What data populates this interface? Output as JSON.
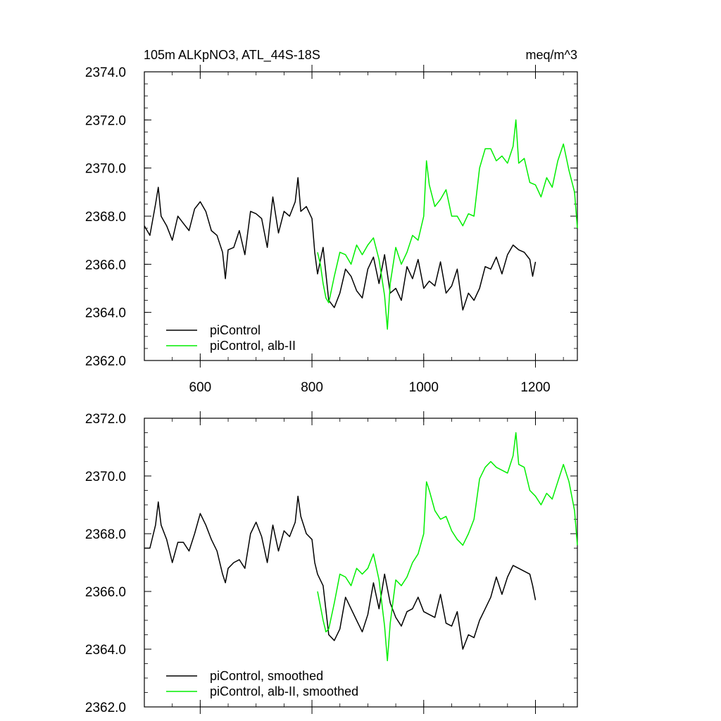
{
  "header": {
    "title": "105m ALKpNO3, ATL_44S-18S",
    "units": "meq/m^3"
  },
  "colors": {
    "black_series": "#000000",
    "green_series": "#00ee00",
    "axis": "#000000"
  },
  "chart_data": [
    {
      "type": "line",
      "xlim": [
        500,
        1275
      ],
      "ylim": [
        2362.0,
        2374.0
      ],
      "xticks": [
        600,
        800,
        1000,
        1200
      ],
      "yticks": [
        2362.0,
        2364.0,
        2366.0,
        2368.0,
        2370.0,
        2372.0,
        2374.0
      ],
      "ytick_labels": [
        "2362.0",
        "2364.0",
        "2366.0",
        "2368.0",
        "2370.0",
        "2372.0",
        "2374.0"
      ],
      "xtick_labels": [
        "600",
        "800",
        "1000",
        "1200"
      ],
      "legend_position": "bottom-left",
      "series": [
        {
          "name": "piControl",
          "color": "#000000",
          "x": [
            500,
            510,
            520,
            525,
            530,
            540,
            550,
            560,
            570,
            580,
            590,
            600,
            610,
            620,
            630,
            640,
            645,
            650,
            660,
            670,
            680,
            690,
            700,
            710,
            720,
            730,
            740,
            750,
            760,
            770,
            775,
            780,
            790,
            800,
            805,
            810,
            820,
            830,
            840,
            850,
            860,
            870,
            880,
            890,
            900,
            910,
            920,
            930,
            940,
            950,
            960,
            970,
            980,
            990,
            1000,
            1010,
            1020,
            1030,
            1040,
            1050,
            1060,
            1070,
            1080,
            1090,
            1100,
            1110,
            1120,
            1130,
            1140,
            1150,
            1160,
            1170,
            1180,
            1190,
            1195,
            1200
          ],
          "y": [
            2367.6,
            2367.2,
            2368.5,
            2369.2,
            2368.0,
            2367.6,
            2367.0,
            2368.0,
            2367.7,
            2367.4,
            2368.3,
            2368.6,
            2368.2,
            2367.4,
            2367.2,
            2366.5,
            2365.4,
            2366.6,
            2366.7,
            2367.4,
            2366.4,
            2368.2,
            2368.1,
            2367.9,
            2366.7,
            2368.8,
            2367.3,
            2368.2,
            2368.0,
            2368.6,
            2369.6,
            2368.2,
            2368.4,
            2367.9,
            2366.5,
            2365.6,
            2366.7,
            2364.5,
            2364.2,
            2364.8,
            2365.8,
            2365.5,
            2364.9,
            2364.6,
            2365.8,
            2366.3,
            2365.2,
            2366.4,
            2364.8,
            2365.0,
            2364.5,
            2365.9,
            2365.4,
            2366.2,
            2365.0,
            2365.3,
            2365.1,
            2366.1,
            2364.8,
            2365.1,
            2365.8,
            2364.1,
            2364.8,
            2364.5,
            2365.0,
            2365.9,
            2365.8,
            2366.3,
            2365.6,
            2366.4,
            2366.8,
            2366.6,
            2366.5,
            2366.2,
            2365.5,
            2366.1
          ]
        },
        {
          "name": "piControl, alb-II",
          "color": "#00ee00",
          "x": [
            810,
            815,
            820,
            825,
            830,
            840,
            850,
            860,
            870,
            880,
            890,
            900,
            910,
            920,
            930,
            935,
            940,
            950,
            960,
            970,
            980,
            990,
            1000,
            1005,
            1010,
            1020,
            1030,
            1040,
            1050,
            1060,
            1070,
            1080,
            1090,
            1100,
            1110,
            1120,
            1130,
            1140,
            1150,
            1160,
            1165,
            1170,
            1180,
            1190,
            1200,
            1210,
            1220,
            1230,
            1240,
            1250,
            1260,
            1270,
            1275
          ],
          "y": [
            2366.5,
            2366.0,
            2365.2,
            2364.6,
            2364.4,
            2365.5,
            2366.5,
            2366.4,
            2366.0,
            2366.8,
            2366.4,
            2366.8,
            2367.1,
            2366.2,
            2364.7,
            2363.3,
            2365.2,
            2366.7,
            2366.0,
            2366.5,
            2367.2,
            2367.0,
            2368.0,
            2370.3,
            2369.3,
            2368.4,
            2368.7,
            2369.1,
            2368.0,
            2368.0,
            2367.6,
            2368.1,
            2368.0,
            2370.0,
            2370.8,
            2370.8,
            2370.3,
            2370.5,
            2370.2,
            2370.9,
            2372.0,
            2370.2,
            2370.4,
            2369.4,
            2369.3,
            2368.8,
            2369.6,
            2369.2,
            2370.3,
            2371.0,
            2369.9,
            2369.0,
            2367.5
          ]
        }
      ]
    },
    {
      "type": "line",
      "xlim": [
        500,
        1275
      ],
      "ylim": [
        2362.0,
        2372.0
      ],
      "xticks": [
        600,
        800,
        1000,
        1200
      ],
      "yticks": [
        2362.0,
        2364.0,
        2366.0,
        2368.0,
        2370.0,
        2372.0
      ],
      "ytick_labels": [
        "2362.0",
        "2364.0",
        "2366.0",
        "2368.0",
        "2370.0",
        "2372.0"
      ],
      "xtick_labels": [],
      "legend_position": "bottom-left",
      "series": [
        {
          "name": "piControl, smoothed",
          "color": "#000000",
          "x": [
            500,
            510,
            520,
            525,
            530,
            540,
            550,
            560,
            570,
            580,
            590,
            600,
            610,
            620,
            630,
            640,
            645,
            650,
            660,
            670,
            680,
            690,
            700,
            710,
            720,
            730,
            740,
            750,
            760,
            770,
            775,
            780,
            790,
            800,
            805,
            810,
            820,
            830,
            840,
            850,
            860,
            870,
            880,
            890,
            900,
            910,
            920,
            930,
            940,
            950,
            960,
            970,
            980,
            990,
            1000,
            1010,
            1020,
            1030,
            1040,
            1050,
            1060,
            1070,
            1080,
            1090,
            1100,
            1110,
            1120,
            1130,
            1140,
            1150,
            1160,
            1170,
            1180,
            1190,
            1195,
            1200
          ],
          "y": [
            2367.5,
            2367.5,
            2368.3,
            2369.1,
            2368.3,
            2367.8,
            2367.0,
            2367.7,
            2367.7,
            2367.4,
            2368.0,
            2368.7,
            2368.3,
            2367.8,
            2367.4,
            2366.6,
            2366.3,
            2366.8,
            2367.0,
            2367.1,
            2366.8,
            2368.0,
            2368.4,
            2367.9,
            2367.0,
            2368.3,
            2367.4,
            2368.1,
            2367.9,
            2368.4,
            2369.3,
            2368.6,
            2368.0,
            2367.8,
            2367.0,
            2366.6,
            2366.2,
            2364.5,
            2364.3,
            2364.7,
            2365.8,
            2365.4,
            2365.0,
            2364.6,
            2365.2,
            2366.3,
            2365.4,
            2366.6,
            2365.6,
            2365.1,
            2364.8,
            2365.3,
            2365.4,
            2365.8,
            2365.3,
            2365.2,
            2365.1,
            2365.9,
            2364.9,
            2364.8,
            2365.3,
            2364.0,
            2364.5,
            2364.4,
            2365.0,
            2365.4,
            2365.8,
            2366.5,
            2365.9,
            2366.5,
            2366.9,
            2366.8,
            2366.7,
            2366.6,
            2366.2,
            2365.7
          ]
        },
        {
          "name": "piControl, alb-II, smoothed",
          "color": "#00ee00",
          "x": [
            810,
            815,
            820,
            825,
            830,
            840,
            850,
            860,
            870,
            880,
            890,
            900,
            910,
            920,
            930,
            935,
            940,
            950,
            960,
            970,
            980,
            990,
            1000,
            1005,
            1010,
            1020,
            1030,
            1040,
            1050,
            1060,
            1070,
            1080,
            1090,
            1100,
            1110,
            1120,
            1130,
            1140,
            1150,
            1160,
            1165,
            1170,
            1180,
            1190,
            1200,
            1210,
            1220,
            1230,
            1240,
            1250,
            1260,
            1270,
            1275
          ],
          "y": [
            2366.0,
            2365.5,
            2365.0,
            2364.6,
            2364.7,
            2365.6,
            2366.6,
            2366.5,
            2366.2,
            2366.8,
            2366.6,
            2366.8,
            2367.3,
            2366.4,
            2364.8,
            2363.6,
            2364.9,
            2366.4,
            2366.2,
            2366.5,
            2367.0,
            2367.3,
            2368.0,
            2369.8,
            2369.5,
            2368.8,
            2368.5,
            2368.6,
            2368.1,
            2367.8,
            2367.6,
            2368.0,
            2368.5,
            2369.9,
            2370.3,
            2370.5,
            2370.3,
            2370.2,
            2370.1,
            2370.7,
            2371.5,
            2370.4,
            2370.3,
            2369.5,
            2369.3,
            2369.0,
            2369.4,
            2369.2,
            2369.8,
            2370.4,
            2369.8,
            2368.8,
            2367.6
          ]
        }
      ]
    }
  ]
}
